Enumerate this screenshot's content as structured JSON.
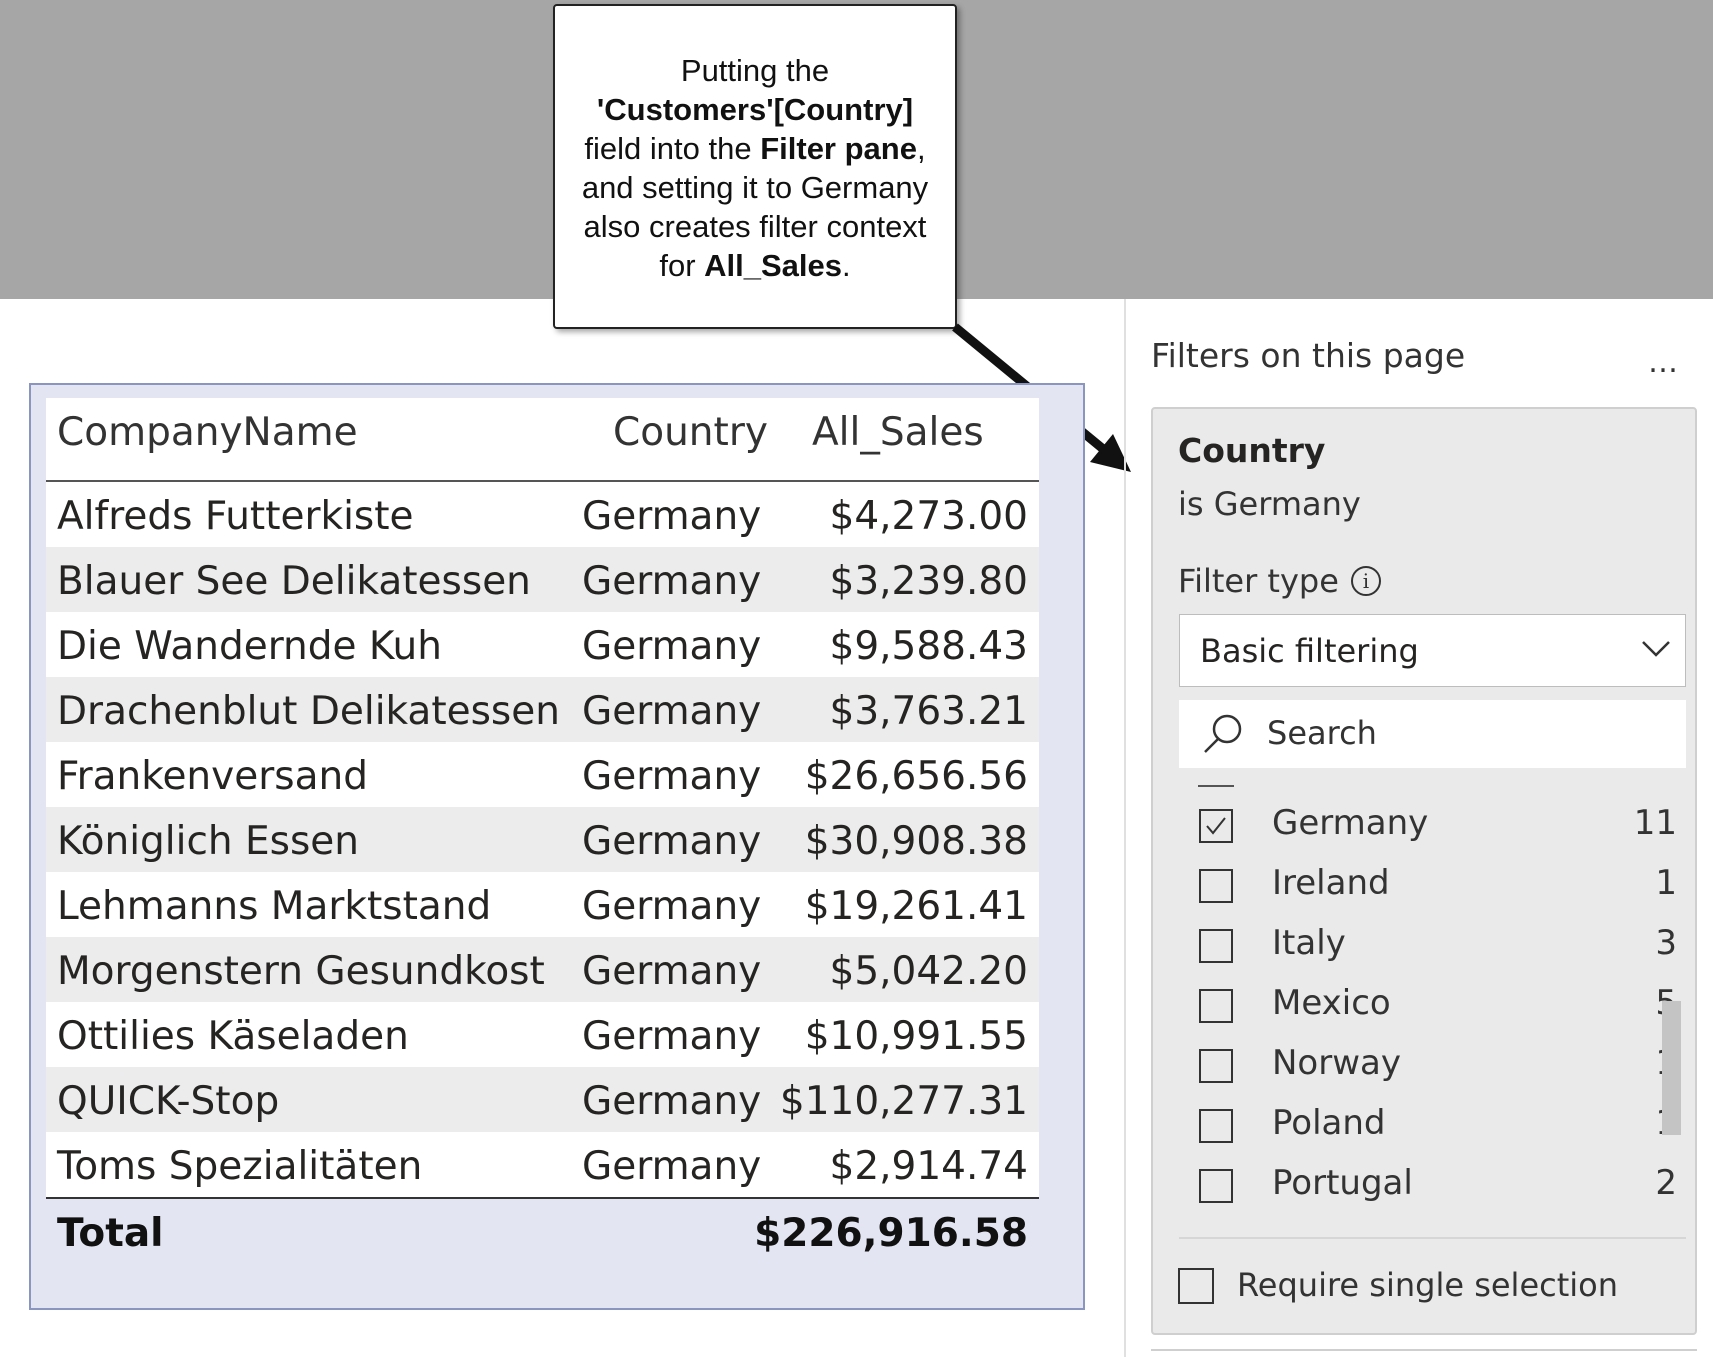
{
  "callout": {
    "line1": "Putting the",
    "line2": "'Customers'[Country]",
    "line3a": "field into the ",
    "line3b": "Filter pane",
    "line3c": ",",
    "line4": "and setting it to Germany",
    "line5": "also creates filter context",
    "line6a": "for ",
    "line6b": "All_Sales",
    "line6c": "."
  },
  "table": {
    "headers": [
      "CompanyName",
      "Country",
      "All_Sales"
    ],
    "rows": [
      [
        "Alfreds Futterkiste",
        "Germany",
        "$4,273.00"
      ],
      [
        "Blauer See Delikatessen",
        "Germany",
        "$3,239.80"
      ],
      [
        "Die Wandernde Kuh",
        "Germany",
        "$9,588.43"
      ],
      [
        "Drachenblut Delikatessen",
        "Germany",
        "$3,763.21"
      ],
      [
        "Frankenversand",
        "Germany",
        "$26,656.56"
      ],
      [
        "Königlich Essen",
        "Germany",
        "$30,908.38"
      ],
      [
        "Lehmanns Marktstand",
        "Germany",
        "$19,261.41"
      ],
      [
        "Morgenstern Gesundkost",
        "Germany",
        "$5,042.20"
      ],
      [
        "Ottilies Käseladen",
        "Germany",
        "$10,991.55"
      ],
      [
        "QUICK-Stop",
        "Germany",
        "$110,277.31"
      ],
      [
        "Toms Spezialitäten",
        "Germany",
        "$2,914.74"
      ]
    ],
    "total_label": "Total",
    "total_value": "$226,916.58"
  },
  "filters": {
    "pane_title": "Filters on this page",
    "more_icon": "…",
    "card_title": "Country",
    "card_subtitle": "is Germany",
    "filter_type_label": "Filter type",
    "filter_type_value": "Basic filtering",
    "search_placeholder": "Search",
    "items": [
      {
        "label": "Germany",
        "count": "11",
        "checked": true
      },
      {
        "label": "Ireland",
        "count": "1",
        "checked": false
      },
      {
        "label": "Italy",
        "count": "3",
        "checked": false
      },
      {
        "label": "Mexico",
        "count": "5",
        "checked": false
      },
      {
        "label": "Norway",
        "count": "1",
        "checked": false
      },
      {
        "label": "Poland",
        "count": "1",
        "checked": false
      },
      {
        "label": "Portugal",
        "count": "2",
        "checked": false
      }
    ],
    "require_single": "Require single selection"
  },
  "icons": {
    "info": "info-icon",
    "chevron": "chevron-down-icon",
    "search": "search-icon",
    "check": "checkmark-icon"
  }
}
